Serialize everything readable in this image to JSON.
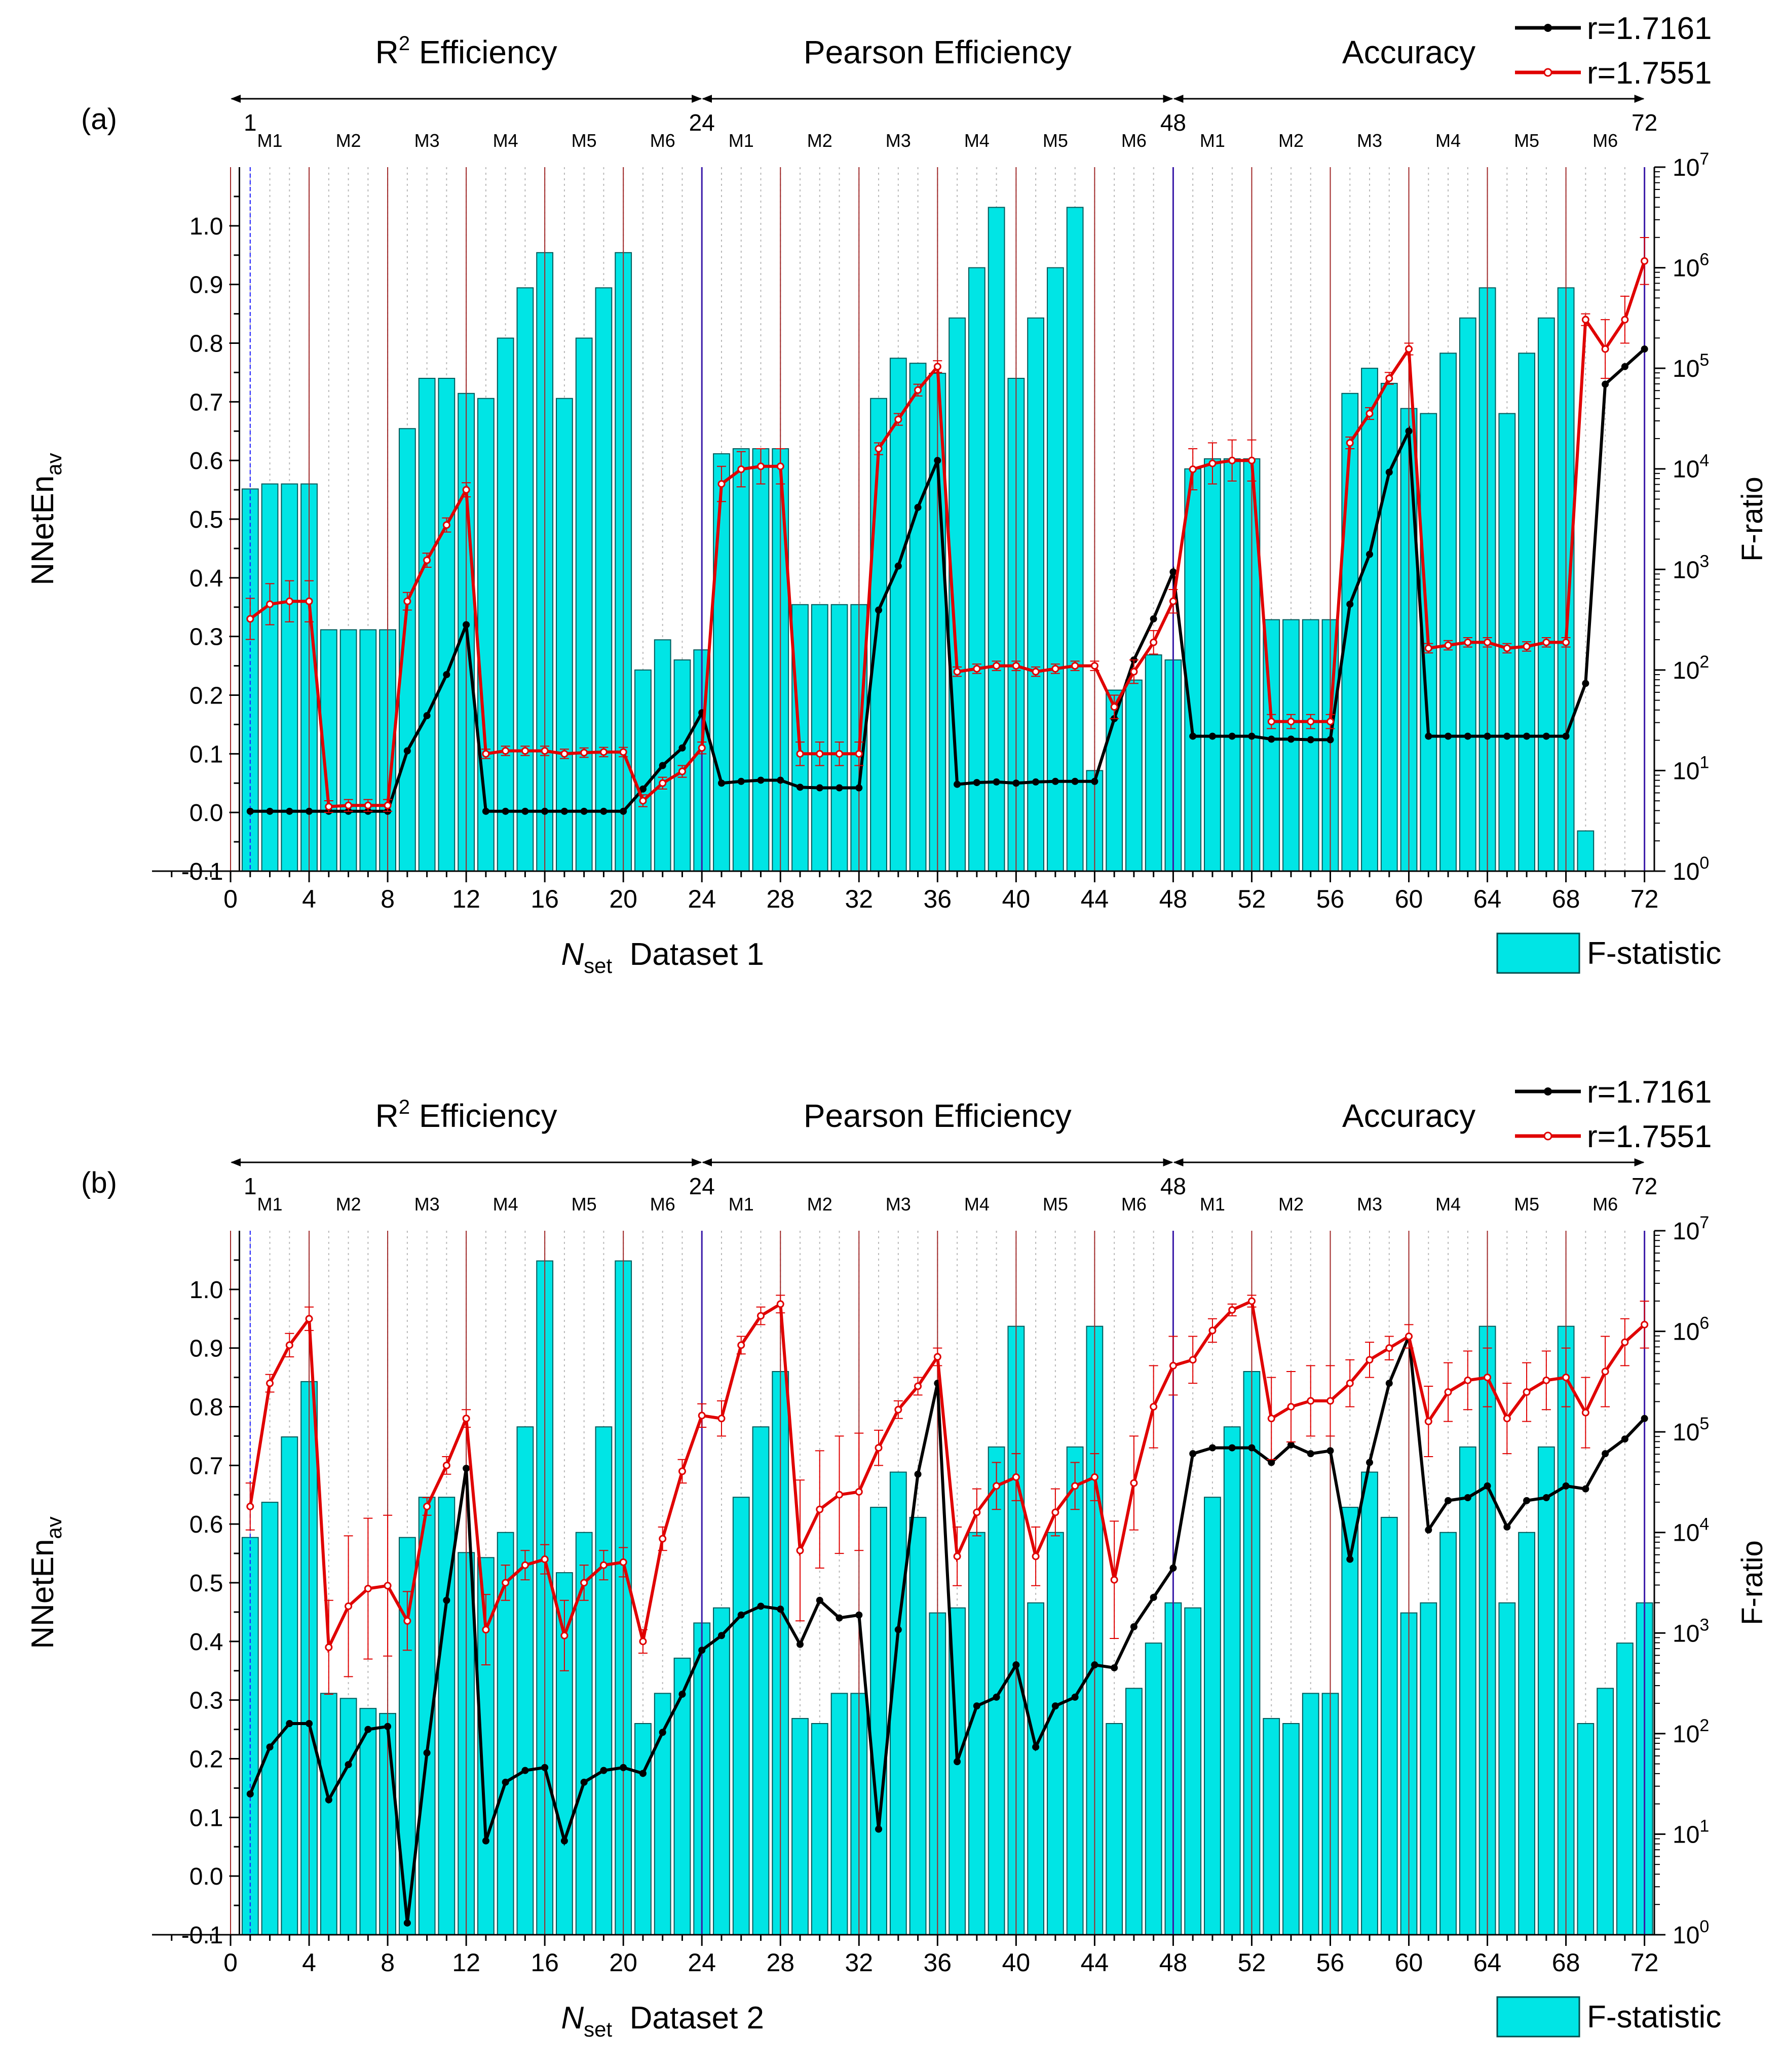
{
  "legend": {
    "series": [
      {
        "name": "r=1.7161",
        "color": "#000000",
        "marker": "filled-circle"
      },
      {
        "name": "r=1.7551",
        "color": "#e00000",
        "marker": "open-circle"
      }
    ],
    "bar": {
      "name": "F-statistic",
      "color": "#00e5e5"
    }
  },
  "chart_data": [
    {
      "type": "bar+line",
      "panel_label": "(a)",
      "xlabel_main": "N",
      "xlabel_sub": "set",
      "xlabel_suffix": "Dataset 1",
      "ylabel_main": "NNetEn",
      "ylabel_sub": "av",
      "y2label": "F-ratio",
      "xlim": [
        -4,
        72.5
      ],
      "ylim": [
        -0.1,
        1.1
      ],
      "y2lim_log10": [
        0,
        7
      ],
      "y2_scale": "log",
      "x_ticks": [
        0,
        4,
        8,
        12,
        16,
        20,
        24,
        28,
        32,
        36,
        40,
        44,
        48,
        52,
        56,
        60,
        64,
        68,
        72
      ],
      "y_ticks": [
        "-0.1",
        "0.0",
        "0.1",
        "0.2",
        "0.3",
        "0.4",
        "0.5",
        "0.6",
        "0.7",
        "0.8",
        "0.9",
        "1.0"
      ],
      "y2_ticks": [
        {
          "base": "10",
          "exp": "0"
        },
        {
          "base": "10",
          "exp": "1"
        },
        {
          "base": "10",
          "exp": "2"
        },
        {
          "base": "10",
          "exp": "3"
        },
        {
          "base": "10",
          "exp": "4"
        },
        {
          "base": "10",
          "exp": "5"
        },
        {
          "base": "10",
          "exp": "6"
        },
        {
          "base": "10",
          "exp": "7"
        }
      ],
      "sections": [
        {
          "title_pre": "R",
          "title_sup": "2",
          "title_post": " Efficiency",
          "x_start": 0,
          "x_end": 24
        },
        {
          "title_pre": "Pearson Efficiency",
          "title_sup": "",
          "title_post": "",
          "x_start": 24,
          "x_end": 48
        },
        {
          "title_pre": "Accuracy",
          "title_sup": "",
          "title_post": "",
          "x_start": 48,
          "x_end": 72
        }
      ],
      "boundary_labels": [
        {
          "x": 1,
          "label": "1"
        },
        {
          "x": 24,
          "label": "24"
        },
        {
          "x": 48,
          "label": "48"
        },
        {
          "x": 72,
          "label": "72"
        }
      ],
      "method_labels": [
        {
          "x": 2,
          "label": "M1"
        },
        {
          "x": 6,
          "label": "M2"
        },
        {
          "x": 10,
          "label": "M3"
        },
        {
          "x": 14,
          "label": "M4"
        },
        {
          "x": 18,
          "label": "M5"
        },
        {
          "x": 22,
          "label": "M6"
        },
        {
          "x": 26,
          "label": "M1"
        },
        {
          "x": 30,
          "label": "M2"
        },
        {
          "x": 34,
          "label": "M3"
        },
        {
          "x": 38,
          "label": "M4"
        },
        {
          "x": 42,
          "label": "M5"
        },
        {
          "x": 46,
          "label": "M6"
        },
        {
          "x": 50,
          "label": "M1"
        },
        {
          "x": 54,
          "label": "M2"
        },
        {
          "x": 58,
          "label": "M3"
        },
        {
          "x": 62,
          "label": "M4"
        },
        {
          "x": 66,
          "label": "M5"
        },
        {
          "x": 70,
          "label": "M6"
        }
      ],
      "x": [
        1,
        2,
        3,
        4,
        5,
        6,
        7,
        8,
        9,
        10,
        11,
        12,
        13,
        14,
        15,
        16,
        17,
        18,
        19,
        20,
        21,
        22,
        23,
        24,
        25,
        26,
        27,
        28,
        29,
        30,
        31,
        32,
        33,
        34,
        35,
        36,
        37,
        38,
        39,
        40,
        41,
        42,
        43,
        44,
        45,
        46,
        47,
        48,
        49,
        50,
        51,
        52,
        53,
        54,
        55,
        56,
        57,
        58,
        59,
        60,
        61,
        62,
        63,
        64,
        65,
        66,
        67,
        68,
        69,
        70,
        71,
        72
      ],
      "bars_log10": [
        3.8,
        3.85,
        3.85,
        3.85,
        2.4,
        2.4,
        2.4,
        2.4,
        4.4,
        4.9,
        4.9,
        4.75,
        4.7,
        5.3,
        5.8,
        6.15,
        4.7,
        5.3,
        5.8,
        6.15,
        2.0,
        2.3,
        2.1,
        2.2,
        4.15,
        4.2,
        4.2,
        4.2,
        2.65,
        2.65,
        2.65,
        2.65,
        4.7,
        5.1,
        5.05,
        4.95,
        5.5,
        6.0,
        6.6,
        4.9,
        5.5,
        6.0,
        6.6,
        1.0,
        1.8,
        1.9,
        2.15,
        2.1,
        4.0,
        4.1,
        4.1,
        4.1,
        2.5,
        2.5,
        2.5,
        2.5,
        4.75,
        5.0,
        4.85,
        4.6,
        4.55,
        5.15,
        5.5,
        5.8,
        4.55,
        5.15,
        5.5,
        5.8,
        0.4,
        null,
        null,
        null
      ],
      "series": [
        {
          "name": "r=1.7161",
          "values": [
            0.002,
            0.002,
            0.002,
            0.002,
            0.002,
            0.002,
            0.002,
            0.002,
            0.105,
            0.165,
            0.235,
            0.32,
            0.002,
            0.002,
            0.002,
            0.002,
            0.002,
            0.002,
            0.002,
            0.002,
            0.04,
            0.08,
            0.11,
            0.17,
            0.05,
            0.053,
            0.055,
            0.055,
            0.043,
            0.042,
            0.042,
            0.042,
            0.345,
            0.42,
            0.52,
            0.6,
            0.048,
            0.051,
            0.052,
            0.05,
            0.052,
            0.053,
            0.053,
            0.053,
            0.16,
            0.26,
            0.33,
            0.41,
            0.13,
            0.13,
            0.13,
            0.13,
            0.125,
            0.125,
            0.124,
            0.124,
            0.355,
            0.44,
            0.58,
            0.65,
            0.13,
            0.13,
            0.13,
            0.13,
            0.13,
            0.13,
            0.13,
            0.13,
            0.22,
            0.73,
            0.76,
            0.79
          ],
          "errors": []
        },
        {
          "name": "r=1.7551",
          "values": [
            0.33,
            0.355,
            0.36,
            0.36,
            0.01,
            0.012,
            0.012,
            0.012,
            0.36,
            0.43,
            0.49,
            0.55,
            0.1,
            0.105,
            0.105,
            0.105,
            0.1,
            0.102,
            0.103,
            0.103,
            0.02,
            0.05,
            0.07,
            0.11,
            0.56,
            0.585,
            0.59,
            0.59,
            0.1,
            0.1,
            0.1,
            0.1,
            0.62,
            0.67,
            0.72,
            0.76,
            0.24,
            0.245,
            0.25,
            0.25,
            0.24,
            0.245,
            0.25,
            0.25,
            0.18,
            0.24,
            0.29,
            0.36,
            0.585,
            0.595,
            0.6,
            0.6,
            0.155,
            0.155,
            0.155,
            0.155,
            0.63,
            0.68,
            0.74,
            0.79,
            0.28,
            0.285,
            0.29,
            0.29,
            0.28,
            0.283,
            0.29,
            0.29,
            0.84,
            0.79,
            0.84,
            0.94
          ],
          "errors": [
            0.035,
            0.035,
            0.035,
            0.035,
            0.01,
            0.01,
            0.01,
            0.01,
            0.015,
            0.012,
            0.012,
            0.012,
            0.008,
            0.008,
            0.008,
            0.008,
            0.008,
            0.008,
            0.008,
            0.008,
            0.01,
            0.01,
            0.01,
            0.01,
            0.03,
            0.03,
            0.03,
            0.03,
            0.02,
            0.02,
            0.02,
            0.02,
            0.01,
            0.01,
            0.01,
            0.01,
            0.008,
            0.008,
            0.008,
            0.008,
            0.008,
            0.008,
            0.008,
            0.008,
            0.02,
            0.02,
            0.02,
            0.02,
            0.035,
            0.035,
            0.035,
            0.035,
            0.012,
            0.012,
            0.012,
            0.012,
            0.01,
            0.01,
            0.01,
            0.01,
            0.008,
            0.008,
            0.008,
            0.008,
            0.008,
            0.008,
            0.008,
            0.008,
            0.01,
            0.05,
            0.04,
            0.04
          ]
        }
      ]
    },
    {
      "type": "bar+line",
      "panel_label": "(b)",
      "xlabel_main": "N",
      "xlabel_sub": "set",
      "xlabel_suffix": "Dataset 2",
      "ylabel_main": "NNetEn",
      "ylabel_sub": "av",
      "y2label": "F-ratio",
      "xlim": [
        -4,
        72.5
      ],
      "ylim": [
        -0.1,
        1.1
      ],
      "y2lim_log10": [
        0,
        7
      ],
      "y2_scale": "log",
      "x_ticks": [
        0,
        4,
        8,
        12,
        16,
        20,
        24,
        28,
        32,
        36,
        40,
        44,
        48,
        52,
        56,
        60,
        64,
        68,
        72
      ],
      "y_ticks": [
        "-0.1",
        "0.0",
        "0.1",
        "0.2",
        "0.3",
        "0.4",
        "0.5",
        "0.6",
        "0.7",
        "0.8",
        "0.9",
        "1.0"
      ],
      "y2_ticks": [
        {
          "base": "10",
          "exp": "0"
        },
        {
          "base": "10",
          "exp": "1"
        },
        {
          "base": "10",
          "exp": "2"
        },
        {
          "base": "10",
          "exp": "3"
        },
        {
          "base": "10",
          "exp": "4"
        },
        {
          "base": "10",
          "exp": "5"
        },
        {
          "base": "10",
          "exp": "6"
        },
        {
          "base": "10",
          "exp": "7"
        }
      ],
      "sections": [
        {
          "title_pre": "R",
          "title_sup": "2",
          "title_post": " Efficiency",
          "x_start": 0,
          "x_end": 24
        },
        {
          "title_pre": "Pearson Efficiency",
          "title_sup": "",
          "title_post": "",
          "x_start": 24,
          "x_end": 48
        },
        {
          "title_pre": "Accuracy",
          "title_sup": "",
          "title_post": "",
          "x_start": 48,
          "x_end": 72
        }
      ],
      "boundary_labels": [
        {
          "x": 1,
          "label": "1"
        },
        {
          "x": 24,
          "label": "24"
        },
        {
          "x": 48,
          "label": "48"
        },
        {
          "x": 72,
          "label": "72"
        }
      ],
      "method_labels": [
        {
          "x": 2,
          "label": "M1"
        },
        {
          "x": 6,
          "label": "M2"
        },
        {
          "x": 10,
          "label": "M3"
        },
        {
          "x": 14,
          "label": "M4"
        },
        {
          "x": 18,
          "label": "M5"
        },
        {
          "x": 22,
          "label": "M6"
        },
        {
          "x": 26,
          "label": "M1"
        },
        {
          "x": 30,
          "label": "M2"
        },
        {
          "x": 34,
          "label": "M3"
        },
        {
          "x": 38,
          "label": "M4"
        },
        {
          "x": 42,
          "label": "M5"
        },
        {
          "x": 46,
          "label": "M6"
        },
        {
          "x": 50,
          "label": "M1"
        },
        {
          "x": 54,
          "label": "M2"
        },
        {
          "x": 58,
          "label": "M3"
        },
        {
          "x": 62,
          "label": "M4"
        },
        {
          "x": 66,
          "label": "M5"
        },
        {
          "x": 70,
          "label": "M6"
        }
      ],
      "x": [
        1,
        2,
        3,
        4,
        5,
        6,
        7,
        8,
        9,
        10,
        11,
        12,
        13,
        14,
        15,
        16,
        17,
        18,
        19,
        20,
        21,
        22,
        23,
        24,
        25,
        26,
        27,
        28,
        29,
        30,
        31,
        32,
        33,
        34,
        35,
        36,
        37,
        38,
        39,
        40,
        41,
        42,
        43,
        44,
        45,
        46,
        47,
        48,
        49,
        50,
        51,
        52,
        53,
        54,
        55,
        56,
        57,
        58,
        59,
        60,
        61,
        62,
        63,
        64,
        65,
        66,
        67,
        68,
        69,
        70,
        71,
        72
      ],
      "bars_log10": [
        3.95,
        4.3,
        4.95,
        5.5,
        2.4,
        2.35,
        2.25,
        2.2,
        3.95,
        4.35,
        4.35,
        3.8,
        3.75,
        4.0,
        5.05,
        6.7,
        3.6,
        4.0,
        5.05,
        6.7,
        2.1,
        2.4,
        2.75,
        3.1,
        3.25,
        4.35,
        5.05,
        5.6,
        2.15,
        2.1,
        2.4,
        2.4,
        4.25,
        4.6,
        4.15,
        3.2,
        3.25,
        4.0,
        4.85,
        6.05,
        3.3,
        4.0,
        4.85,
        6.05,
        2.1,
        2.45,
        2.9,
        3.3,
        3.25,
        4.35,
        5.05,
        5.6,
        2.15,
        2.1,
        2.4,
        2.4,
        4.25,
        4.6,
        4.15,
        3.2,
        3.3,
        4.0,
        4.85,
        6.05,
        3.3,
        4.0,
        4.85,
        6.05,
        2.1,
        2.45,
        2.9,
        3.3
      ],
      "series": [
        {
          "name": "r=1.7161",
          "values": [
            0.14,
            0.22,
            0.26,
            0.26,
            0.13,
            0.19,
            0.25,
            0.255,
            -0.08,
            0.21,
            0.47,
            0.695,
            0.06,
            0.16,
            0.18,
            0.185,
            0.06,
            0.16,
            0.18,
            0.185,
            0.175,
            0.245,
            0.31,
            0.385,
            0.41,
            0.445,
            0.46,
            0.455,
            0.395,
            0.47,
            0.44,
            0.445,
            0.08,
            0.42,
            0.685,
            0.84,
            0.195,
            0.29,
            0.305,
            0.36,
            0.22,
            0.29,
            0.305,
            0.36,
            0.355,
            0.425,
            0.475,
            0.525,
            0.72,
            0.73,
            0.73,
            0.73,
            0.705,
            0.735,
            0.72,
            0.725,
            0.54,
            0.705,
            0.84,
            0.92,
            0.59,
            0.64,
            0.645,
            0.665,
            0.595,
            0.64,
            0.645,
            0.665,
            0.66,
            0.72,
            0.745,
            0.78
          ],
          "errors": []
        },
        {
          "name": "r=1.7551",
          "values": [
            0.63,
            0.84,
            0.905,
            0.95,
            0.39,
            0.46,
            0.49,
            0.495,
            0.435,
            0.63,
            0.7,
            0.78,
            0.42,
            0.5,
            0.53,
            0.54,
            0.41,
            0.5,
            0.53,
            0.535,
            0.4,
            0.575,
            0.69,
            0.785,
            0.78,
            0.905,
            0.955,
            0.975,
            0.555,
            0.625,
            0.65,
            0.655,
            0.73,
            0.795,
            0.835,
            0.885,
            0.545,
            0.62,
            0.665,
            0.68,
            0.545,
            0.62,
            0.665,
            0.68,
            0.505,
            0.67,
            0.8,
            0.87,
            0.88,
            0.93,
            0.965,
            0.98,
            0.78,
            0.8,
            0.81,
            0.81,
            0.84,
            0.88,
            0.9,
            0.92,
            0.775,
            0.825,
            0.845,
            0.85,
            0.78,
            0.825,
            0.845,
            0.85,
            0.79,
            0.86,
            0.91,
            0.94
          ],
          "errors": [
            0.04,
            0.015,
            0.02,
            0.02,
            0.08,
            0.12,
            0.12,
            0.12,
            0.05,
            0.015,
            0.015,
            0.015,
            0.06,
            0.03,
            0.025,
            0.025,
            0.06,
            0.03,
            0.025,
            0.025,
            0.02,
            0.02,
            0.02,
            0.02,
            0.03,
            0.015,
            0.015,
            0.015,
            0.12,
            0.1,
            0.1,
            0.1,
            0.03,
            0.015,
            0.015,
            0.015,
            0.05,
            0.04,
            0.04,
            0.04,
            0.05,
            0.04,
            0.04,
            0.04,
            0.1,
            0.08,
            0.07,
            0.05,
            0.04,
            0.02,
            0.01,
            0.01,
            0.07,
            0.06,
            0.06,
            0.06,
            0.04,
            0.03,
            0.02,
            0.02,
            0.06,
            0.05,
            0.05,
            0.05,
            0.06,
            0.05,
            0.05,
            0.05,
            0.06,
            0.06,
            0.04,
            0.04
          ]
        }
      ]
    }
  ]
}
